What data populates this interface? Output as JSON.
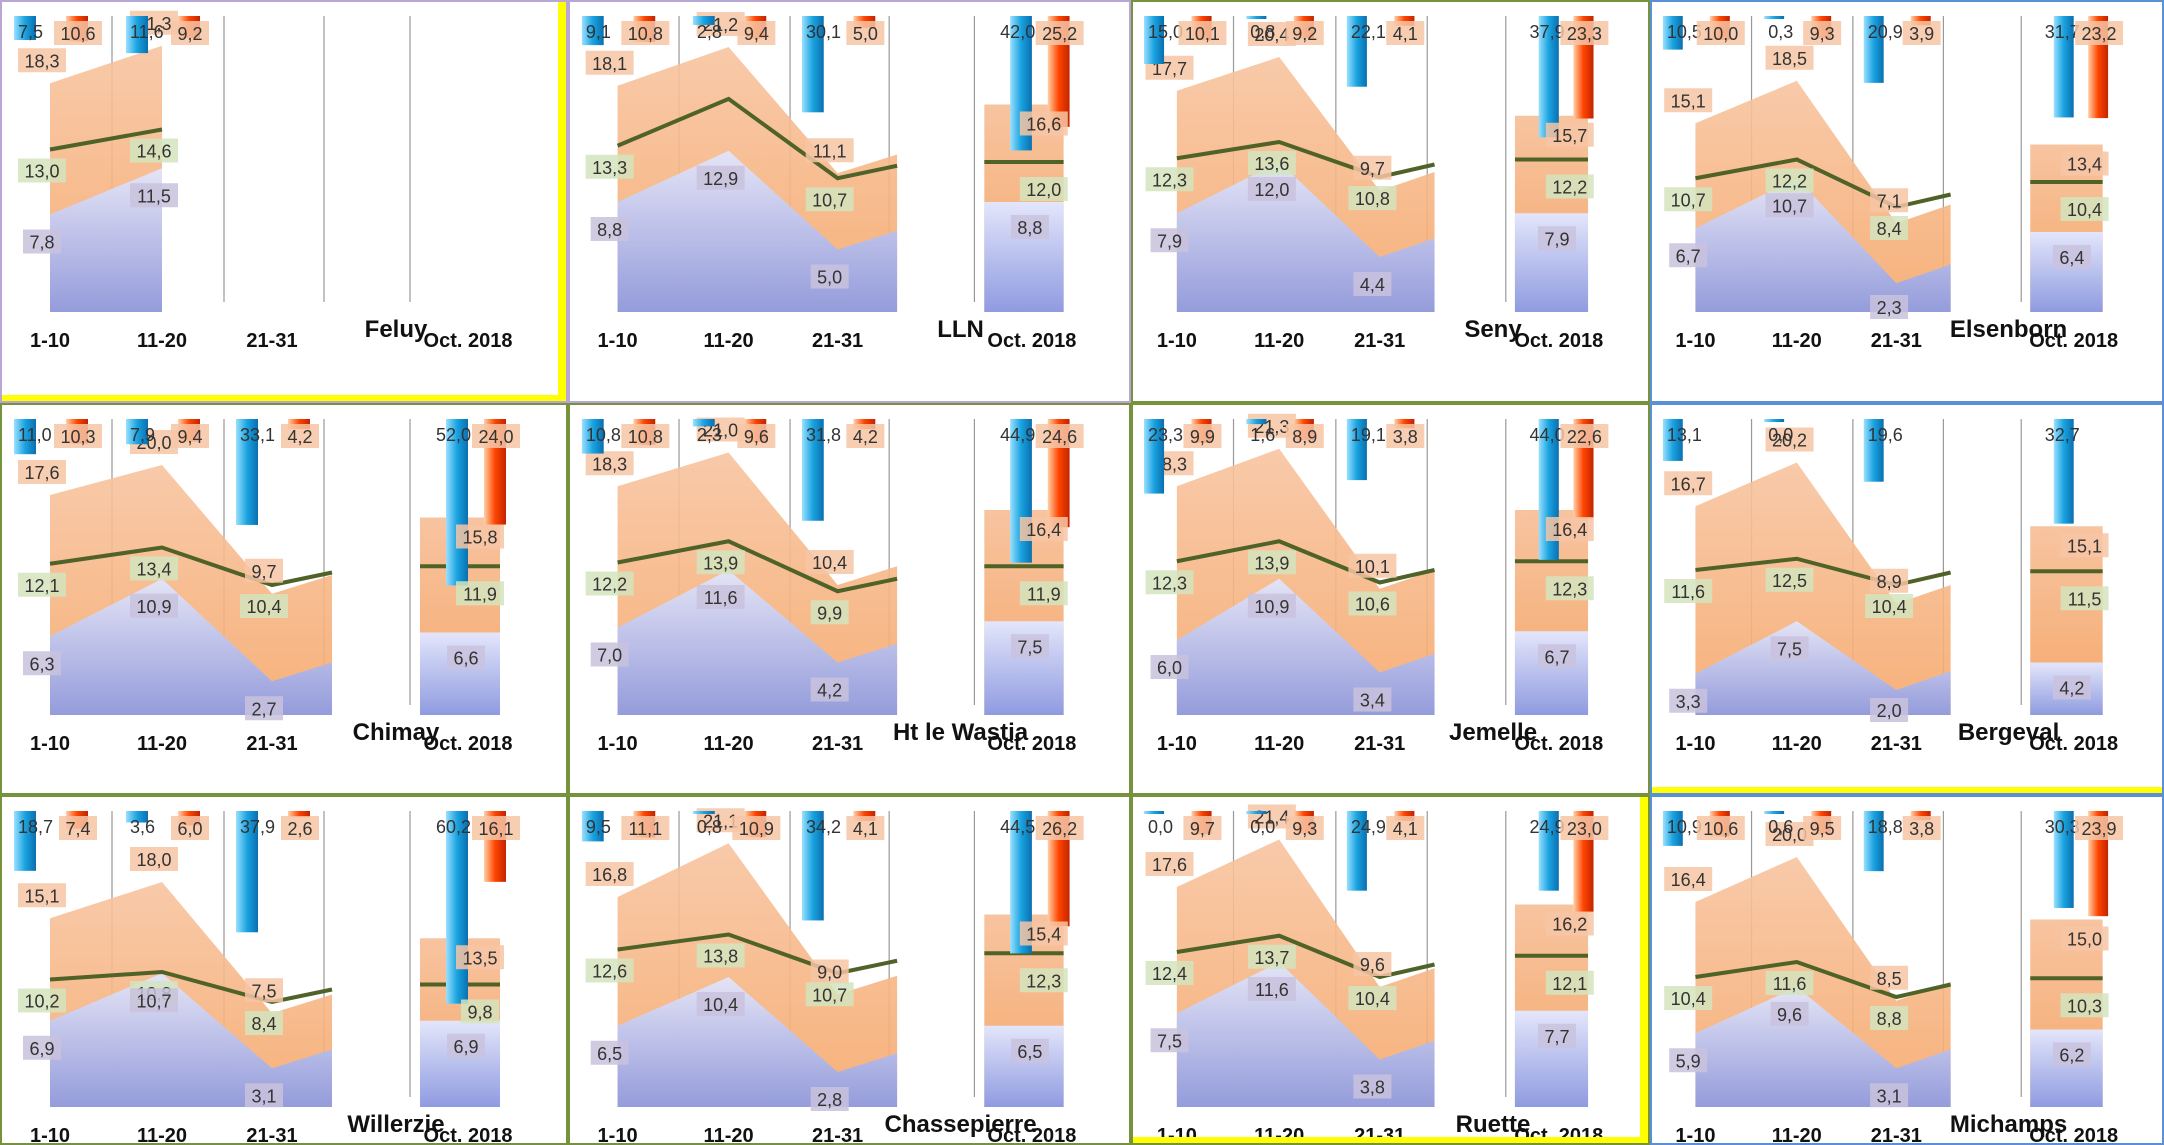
{
  "chart_data": [
    {
      "type": "area",
      "station": "Feluy",
      "categories": [
        "1-10",
        "11-20",
        "21-31"
      ],
      "oct_label": "Oct. 2018",
      "rain": [
        7.5,
        11.6,
        null
      ],
      "insolation": [
        10.6,
        9.2,
        null
      ],
      "tmax": [
        18.3,
        21.3,
        null
      ],
      "tmean": [
        13.0,
        14.6,
        null
      ],
      "tmin": [
        7.8,
        11.5,
        null
      ],
      "oct": null
    },
    {
      "type": "area",
      "station": "LLN",
      "categories": [
        "1-10",
        "11-20",
        "21-31"
      ],
      "oct_label": "Oct. 2018",
      "rain": [
        9.1,
        2.8,
        30.1
      ],
      "insolation": [
        10.8,
        9.4,
        5.0
      ],
      "tmax": [
        18.1,
        21.2,
        11.1
      ],
      "tmean": [
        13.3,
        null,
        10.7
      ],
      "tmin": [
        8.8,
        12.9,
        5.0
      ],
      "oct": {
        "rain": 42.0,
        "insolation": 25.2,
        "tmax": 16.6,
        "tmean": 12.0,
        "tmin": 8.8
      }
    },
    {
      "type": "area",
      "station": "Seny",
      "categories": [
        "1-10",
        "11-20",
        "21-31"
      ],
      "oct_label": "Oct. 2018",
      "rain": [
        15.0,
        0.8,
        22.1
      ],
      "insolation": [
        10.1,
        9.2,
        4.1
      ],
      "tmax": [
        17.7,
        20.4,
        9.7
      ],
      "tmean": [
        12.3,
        13.6,
        10.8
      ],
      "tmin": [
        7.9,
        12.0,
        4.4
      ],
      "oct": {
        "rain": 37.9,
        "insolation": 23.3,
        "tmax": 15.7,
        "tmean": 12.2,
        "tmin": 7.9
      }
    },
    {
      "type": "area",
      "station": "Elsenborn",
      "categories": [
        "1-10",
        "11-20",
        "21-31"
      ],
      "oct_label": "Oct. 2018",
      "rain": [
        10.5,
        0.3,
        20.9
      ],
      "insolation": [
        10.0,
        9.3,
        3.9
      ],
      "tmax": [
        15.1,
        18.5,
        7.1
      ],
      "tmean": [
        10.7,
        12.2,
        8.4
      ],
      "tmin": [
        6.7,
        10.7,
        2.3
      ],
      "oct": {
        "rain": 31.7,
        "insolation": 23.2,
        "tmax": 13.4,
        "tmean": 10.4,
        "tmin": 6.4
      }
    },
    {
      "type": "area",
      "station": "Chimay",
      "categories": [
        "1-10",
        "11-20",
        "21-31"
      ],
      "oct_label": "Oct. 2018",
      "rain": [
        11.0,
        7.9,
        33.1
      ],
      "insolation": [
        10.3,
        9.4,
        4.2
      ],
      "tmax": [
        17.6,
        20.0,
        9.7
      ],
      "tmean": [
        12.1,
        13.4,
        10.4
      ],
      "tmin": [
        6.3,
        10.9,
        2.7
      ],
      "oct": {
        "rain": 52.0,
        "insolation": 24.0,
        "tmax": 15.8,
        "tmean": 11.9,
        "tmin": 6.6
      }
    },
    {
      "type": "area",
      "station": "Ht le Wastia",
      "categories": [
        "1-10",
        "11-20",
        "21-31"
      ],
      "oct_label": "Oct. 2018",
      "rain": [
        10.8,
        2.3,
        31.8
      ],
      "insolation": [
        10.8,
        9.6,
        4.2
      ],
      "tmax": [
        18.3,
        21.0,
        10.4
      ],
      "tmean": [
        12.2,
        13.9,
        9.9
      ],
      "tmin": [
        7.0,
        11.6,
        4.2
      ],
      "oct": {
        "rain": 44.9,
        "insolation": 24.6,
        "tmax": 16.4,
        "tmean": 11.9,
        "tmin": 7.5
      }
    },
    {
      "type": "area",
      "station": "Jemelle",
      "categories": [
        "1-10",
        "11-20",
        "21-31"
      ],
      "oct_label": "Oct. 2018",
      "rain": [
        23.3,
        1.6,
        19.1
      ],
      "insolation": [
        9.9,
        8.9,
        3.8
      ],
      "tmax": [
        18.3,
        21.3,
        10.1
      ],
      "tmean": [
        12.3,
        13.9,
        10.6
      ],
      "tmin": [
        6.0,
        10.9,
        3.4
      ],
      "oct": {
        "rain": 44.0,
        "insolation": 22.6,
        "tmax": 16.4,
        "tmean": 12.3,
        "tmin": 6.7
      }
    },
    {
      "type": "area",
      "station": "Bergeval",
      "categories": [
        "1-10",
        "11-20",
        "21-31"
      ],
      "oct_label": "Oct. 2018",
      "rain": [
        13.1,
        0.0,
        19.6
      ],
      "insolation": [
        null,
        null,
        null
      ],
      "tmax": [
        16.7,
        20.2,
        8.9
      ],
      "tmean": [
        11.6,
        12.5,
        10.4
      ],
      "tmin": [
        3.3,
        7.5,
        2.0
      ],
      "oct": {
        "rain": 32.7,
        "insolation": null,
        "tmax": 15.1,
        "tmean": 11.5,
        "tmin": 4.2
      }
    },
    {
      "type": "area",
      "station": "Willerzie",
      "categories": [
        "1-10",
        "11-20",
        "21-31"
      ],
      "oct_label": "Oct. 2018",
      "rain": [
        18.7,
        3.6,
        37.9
      ],
      "insolation": [
        7.4,
        6.0,
        2.6
      ],
      "tmax": [
        15.1,
        18.0,
        7.5
      ],
      "tmean": [
        10.2,
        10.8,
        8.4
      ],
      "tmin": [
        6.9,
        10.7,
        3.1
      ],
      "oct": {
        "rain": 60.2,
        "insolation": 16.1,
        "tmax": 13.5,
        "tmean": 9.8,
        "tmin": 6.9
      }
    },
    {
      "type": "area",
      "station": "Chassepierre",
      "categories": [
        "1-10",
        "11-20",
        "21-31"
      ],
      "oct_label": "Oct. 2018",
      "rain": [
        9.5,
        0.8,
        34.2
      ],
      "insolation": [
        11.1,
        10.9,
        4.1
      ],
      "tmax": [
        16.8,
        21.1,
        9.0
      ],
      "tmean": [
        12.6,
        13.8,
        10.7
      ],
      "tmin": [
        6.5,
        10.4,
        2.8
      ],
      "oct": {
        "rain": 44.5,
        "insolation": 26.2,
        "tmax": 15.4,
        "tmean": 12.3,
        "tmin": 6.5
      }
    },
    {
      "type": "area",
      "station": "Ruette",
      "categories": [
        "1-10",
        "11-20",
        "21-31"
      ],
      "oct_label": "Oct. 2018",
      "rain": [
        0.0,
        0.0,
        24.9
      ],
      "insolation": [
        9.7,
        9.3,
        4.1
      ],
      "tmax": [
        17.6,
        21.4,
        9.6
      ],
      "tmean": [
        12.4,
        13.7,
        10.4
      ],
      "tmin": [
        7.5,
        11.6,
        3.8
      ],
      "oct": {
        "rain": 24.9,
        "insolation": 23.0,
        "tmax": 16.2,
        "tmean": 12.1,
        "tmin": 7.7
      }
    },
    {
      "type": "area",
      "station": "Michamps",
      "categories": [
        "1-10",
        "11-20",
        "21-31"
      ],
      "oct_label": "Oct. 2018",
      "rain": [
        10.9,
        0.6,
        18.8
      ],
      "insolation": [
        10.6,
        9.5,
        3.8
      ],
      "tmax": [
        16.4,
        20.0,
        8.5
      ],
      "tmean": [
        10.4,
        11.6,
        8.8
      ],
      "tmin": [
        5.9,
        9.6,
        3.1
      ],
      "oct": {
        "rain": 30.3,
        "insolation": 23.9,
        "tmax": 15.0,
        "tmean": 10.3,
        "tmin": 6.2
      }
    }
  ],
  "colors": {
    "area_max": "#f6a86b",
    "area_min": "#b9c2ee",
    "mean_line": "#4f6228",
    "rain": "#1aa3e0",
    "insolation": "#ff4500",
    "border_purple": "#b8a6d6",
    "border_green": "#76923c",
    "border_blue": "#5b8fd6",
    "highlight_yellow": "#ffff00",
    "label_max_bg": "#f7c6a5",
    "label_mean_bg": "#d3e4bd",
    "label_min_bg": "#c9c2dd"
  }
}
